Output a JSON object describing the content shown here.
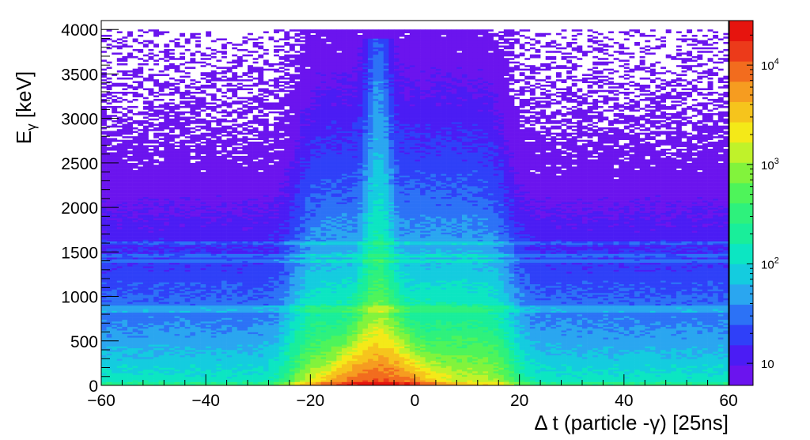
{
  "chart_data": {
    "type": "heatmap",
    "xlabel": "Δ t (particle -γ) [25ns]",
    "ylabel": "E",
    "ylabel_sub": "γ",
    "ylabel_unit": " [keV]",
    "xlim": [
      -60,
      60
    ],
    "ylim": [
      0,
      4100
    ],
    "x_ticks": [
      -60,
      -40,
      -20,
      0,
      20,
      40,
      60
    ],
    "x_tick_labels": [
      "−60",
      "−40",
      "−20",
      "0",
      "20",
      "40",
      "60"
    ],
    "y_ticks": [
      0,
      500,
      1000,
      1500,
      2000,
      2500,
      3000,
      3500,
      4000
    ],
    "y_tick_labels": [
      "0",
      "500",
      "1000",
      "1500",
      "2000",
      "2500",
      "3000",
      "3500",
      "4000"
    ],
    "colorbar": {
      "scale": "log",
      "range": [
        6,
        28000
      ],
      "ticks": [
        10,
        100,
        1000,
        10000
      ],
      "tick_bases": [
        "10",
        "10",
        "10",
        "10"
      ],
      "tick_exponents": [
        "",
        "2",
        "3",
        "4"
      ]
    },
    "peak": {
      "x": -7,
      "y": 200
    },
    "band_edges": {
      "x_low": -22,
      "x_high": 17
    },
    "prompt_peak": {
      "x": -7,
      "max_energy": 3900
    },
    "lines": [
      1600,
      1460,
      1400,
      880,
      840,
      20
    ],
    "grid": false,
    "colors": {
      "palette": [
        "#6b14ee",
        "#4b1cf4",
        "#2f40f8",
        "#2c72f6",
        "#2aa6f0",
        "#14ccdf",
        "#0ce6c2",
        "#19ee9a",
        "#2ef17c",
        "#4ef45a",
        "#82f33c",
        "#c0f22a",
        "#f4e918",
        "#f6c41c",
        "#f69c20",
        "#f26c1e",
        "#ec3a1a",
        "#e6140e"
      ]
    }
  }
}
